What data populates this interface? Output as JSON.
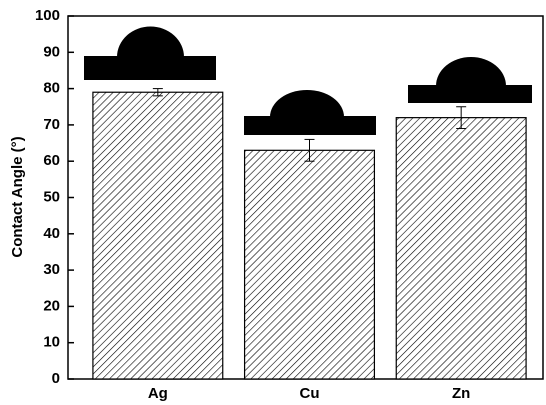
{
  "chart_data": {
    "type": "bar",
    "y_label": "Contact Angle (°)",
    "categories": [
      "Ag",
      "Cu",
      "Zn"
    ],
    "values": [
      79,
      63,
      72
    ],
    "errors": [
      1,
      3,
      3
    ],
    "color": "#000000",
    "ylim": [
      0,
      100
    ],
    "yticks": [
      0,
      10,
      20,
      30,
      40,
      50,
      60,
      70,
      80,
      90,
      100
    ]
  }
}
